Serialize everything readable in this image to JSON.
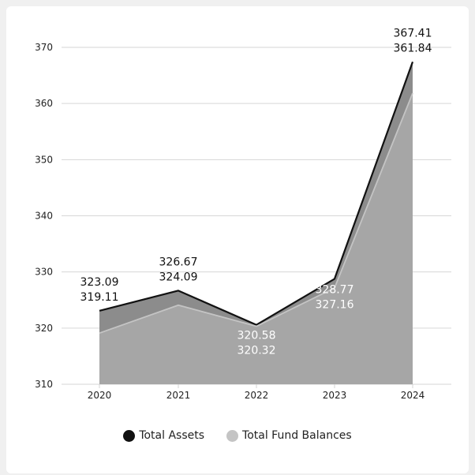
{
  "chart_data": {
    "type": "area",
    "categories": [
      "2020",
      "2021",
      "2022",
      "2023",
      "2024"
    ],
    "series": [
      {
        "name": "Total Assets",
        "values": [
          323.09,
          326.67,
          320.58,
          328.77,
          367.41
        ],
        "color": "#111111",
        "fill": "#8c8c8c"
      },
      {
        "name": "Total Fund Balances",
        "values": [
          319.11,
          324.09,
          320.32,
          327.16,
          361.84
        ],
        "color": "#c4c4c4",
        "fill": "#a6a6a6"
      }
    ],
    "data_labels": [
      [
        "323.09",
        "319.11"
      ],
      [
        "326.67",
        "324.09"
      ],
      [
        "320.58",
        "320.32"
      ],
      [
        "328.77",
        "327.16"
      ],
      [
        "367.41",
        "361.84"
      ]
    ],
    "yticks": [
      "310",
      "320",
      "330",
      "340",
      "350",
      "360",
      "370"
    ],
    "ylim": [
      310,
      370
    ],
    "grid": true,
    "legend_position": "bottom-center"
  }
}
